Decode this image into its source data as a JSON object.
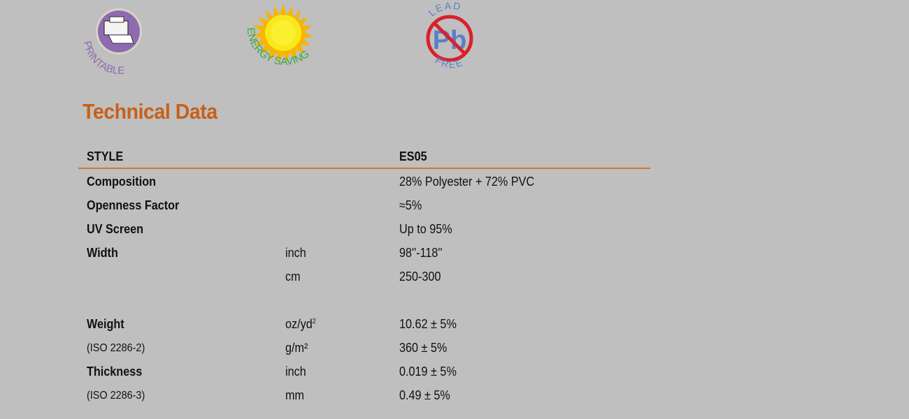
{
  "logos": {
    "printable": {
      "text": "PRINTABLE",
      "color": "#8e6bb0"
    },
    "energy_saving": {
      "text": "ENERGY SAVING",
      "color": "#3aa84a"
    },
    "lead_free": {
      "top_text": "LEAD",
      "bottom_text": "FREE",
      "symbol": "Pb",
      "color": "#5a7fc8",
      "ring_color": "#d9202a"
    }
  },
  "title": "Technical Data",
  "accent_color": "#c8601a",
  "table": {
    "header": {
      "label": "STYLE",
      "value": "ES05"
    },
    "rows": [
      {
        "label": "Composition",
        "unit": "",
        "value": "28% Polyester + 72% PVC"
      },
      {
        "label": "Openness Factor",
        "unit": "",
        "value": "≈5%"
      },
      {
        "label": "UV Screen",
        "unit": "",
        "value": "Up to 95%"
      },
      {
        "label": "Width",
        "unit": "inch",
        "value": "98''-118''"
      },
      {
        "label": "",
        "unit": "cm",
        "value": "250-300"
      },
      {
        "label": "Weight",
        "unit": "oz/yd",
        "unit_sup": "2",
        "value": "10.62 ± 5%"
      },
      {
        "label": "(ISO 2286-2)",
        "unit": "g/m²",
        "value": "360 ± 5%"
      },
      {
        "label": "Thickness",
        "unit": "inch",
        "value": "0.019 ± 5%"
      },
      {
        "label": "(ISO 2286-3)",
        "unit": "mm",
        "value": "0.49 ± 5%"
      }
    ]
  }
}
